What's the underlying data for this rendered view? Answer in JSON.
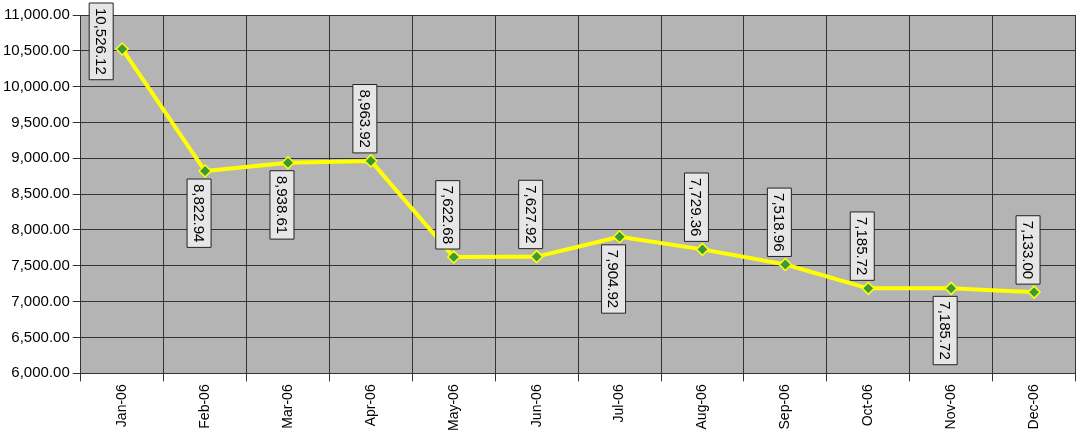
{
  "chart_data": {
    "type": "line",
    "categories": [
      "Jan-06",
      "Feb-06",
      "Mar-06",
      "Apr-06",
      "May-06",
      "Jun-06",
      "Jul-06",
      "Aug-06",
      "Sep-06",
      "Oct-06",
      "Nov-06",
      "Dec-06"
    ],
    "series": [
      {
        "color": "#ffff00",
        "values": [
          10526.12,
          8822.94,
          8938.61,
          8963.92,
          7622.68,
          7627.92,
          7904.92,
          7729.36,
          7518.96,
          7185.72,
          7185.72,
          7133.0
        ],
        "value_labels": [
          "10,526.12",
          "8,822.94",
          "8,938.61",
          "8,963.92",
          "7,622.68",
          "7,627.92",
          "7,904.92",
          "7,729.36",
          "7,518.96",
          "7,185.72",
          "7,185.72",
          "7,133.00"
        ]
      }
    ],
    "ylim": [
      6000,
      11000
    ],
    "yticks": [
      {
        "value": 6000,
        "label": "6,000.00"
      },
      {
        "value": 6500,
        "label": "6,500.00"
      },
      {
        "value": 7000,
        "label": "7,000.00"
      },
      {
        "value": 7500,
        "label": "7,500.00"
      },
      {
        "value": 8000,
        "label": "8,000.00"
      },
      {
        "value": 8500,
        "label": "8,500.00"
      },
      {
        "value": 9000,
        "label": "9,000.00"
      },
      {
        "value": 9500,
        "label": "9,500.00"
      },
      {
        "value": 10000,
        "label": "10,000.00"
      },
      {
        "value": 10500,
        "label": "10,500.00"
      },
      {
        "value": 11000,
        "label": "11,000.00"
      }
    ],
    "grid": true,
    "legend": false,
    "marker": "diamond",
    "line_style": "solid"
  }
}
